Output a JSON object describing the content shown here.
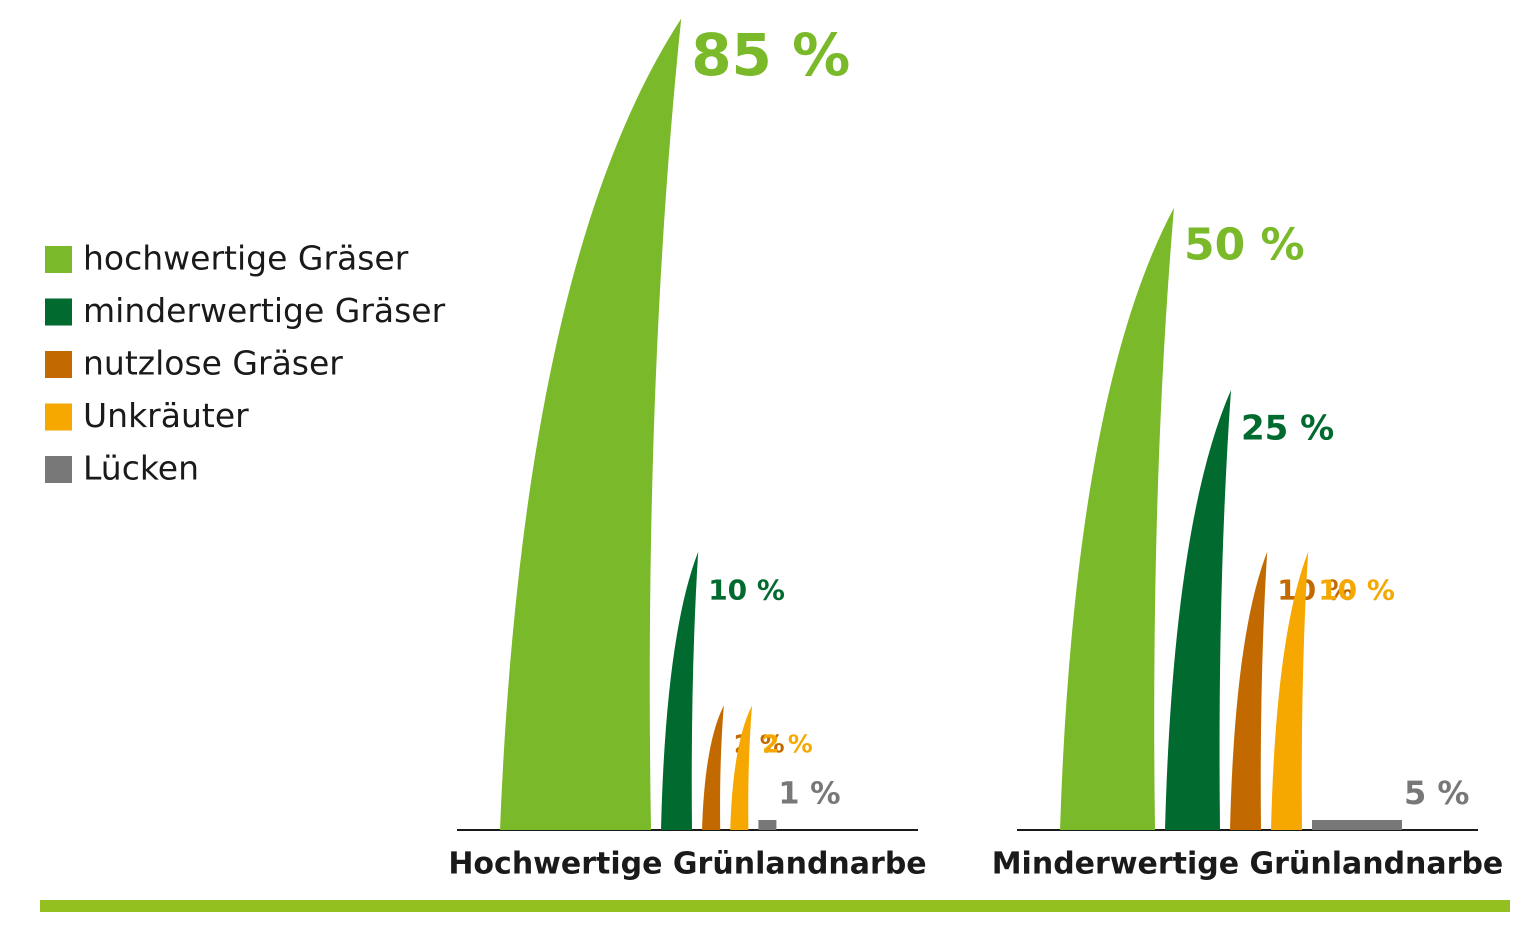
{
  "chart_data": {
    "type": "grass",
    "categories": [
      "Hochwertige Grünlandnarbe",
      "Minderwertige Grünlandnarbe"
    ],
    "series": [
      {
        "name": "hochwertige Gräser",
        "color": "#7ab929",
        "values": [
          85,
          50
        ],
        "value_labels": [
          "85 %",
          "50 %"
        ]
      },
      {
        "name": "minderwertige Gräser",
        "color": "#006a2f",
        "values": [
          10,
          25
        ],
        "value_labels": [
          "10 %",
          "25 %"
        ]
      },
      {
        "name": "nutzlose Gräser",
        "color": "#c26a00",
        "values": [
          2,
          10
        ],
        "value_labels": [
          "2 %",
          "10 %"
        ]
      },
      {
        "name": "Unkräuter",
        "color": "#f6a800",
        "values": [
          2,
          10
        ],
        "value_labels": [
          "2 %",
          "10 %"
        ]
      },
      {
        "name": "Lücken",
        "color": "#787878",
        "values": [
          1,
          5
        ],
        "value_labels": [
          "1 %",
          "5 %"
        ]
      }
    ]
  }
}
